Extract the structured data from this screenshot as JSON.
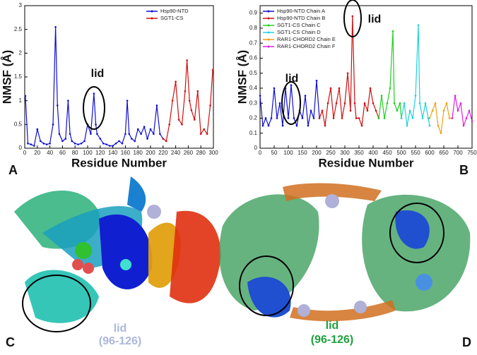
{
  "chart_data": [
    {
      "type": "line",
      "x_label": "Residue Number",
      "y_label": "NMSF (Å)",
      "annotation": "lid",
      "legend": "upper right",
      "xlim": [
        0,
        300
      ],
      "xticks": [
        0,
        20,
        40,
        60,
        80,
        100,
        120,
        140,
        160,
        180,
        200,
        220,
        240,
        260,
        280,
        300
      ],
      "ylim": [
        0,
        3
      ],
      "yticks": [
        0,
        0.5,
        1,
        1.5,
        2,
        2.5,
        3
      ],
      "series": [
        {
          "name": "Hsp90-NTD",
          "color": "#1010d0",
          "x": [
            1,
            5,
            10,
            15,
            20,
            25,
            30,
            35,
            40,
            45,
            49,
            52,
            55,
            60,
            65,
            69,
            72,
            75,
            80,
            85,
            90,
            95,
            100,
            105,
            110,
            113,
            115,
            120,
            125,
            130,
            135,
            140,
            145,
            150,
            155,
            160,
            163,
            166,
            170,
            175,
            180,
            185,
            190,
            195,
            200,
            205,
            210,
            215,
            220
          ],
          "values": [
            1.1,
            0.1,
            0.08,
            0.05,
            0.4,
            0.15,
            0.1,
            0.08,
            0.1,
            0.5,
            2.55,
            0.9,
            0.3,
            0.15,
            0.2,
            1.0,
            0.3,
            0.15,
            0.1,
            0.08,
            0.1,
            0.15,
            0.5,
            0.3,
            1.15,
            0.5,
            0.3,
            0.2,
            0.1,
            0.08,
            0.05,
            0.05,
            0.1,
            0.15,
            0.1,
            0.3,
            1.0,
            0.3,
            0.2,
            0.15,
            0.4,
            0.3,
            0.45,
            0.2,
            0.4,
            0.3,
            0.9,
            0.3,
            0.2
          ]
        },
        {
          "name": "SGT1-CS",
          "color": "#d01010",
          "x": [
            220,
            225,
            230,
            235,
            240,
            245,
            250,
            255,
            258,
            262,
            265,
            270,
            275,
            280,
            285,
            290,
            295,
            299
          ],
          "values": [
            0.2,
            0.15,
            0.5,
            1.0,
            1.4,
            0.6,
            0.5,
            1.2,
            1.85,
            1.0,
            0.8,
            0.6,
            1.2,
            0.3,
            0.4,
            0.3,
            0.9,
            1.65
          ]
        }
      ]
    },
    {
      "type": "line",
      "x_label": "Residue Number",
      "y_label": "NMSF (Å)",
      "annotation": "lid",
      "legend": "upper left",
      "xlim": [
        0,
        750
      ],
      "xticks": [
        0,
        50,
        100,
        150,
        200,
        250,
        300,
        350,
        400,
        450,
        500,
        550,
        600,
        650,
        700,
        750
      ],
      "ylim": [
        0,
        0.95
      ],
      "yticks": [
        0,
        0.1,
        0.2,
        0.3,
        0.4,
        0.5,
        0.6,
        0.7,
        0.8,
        0.9
      ],
      "series": [
        {
          "name": "Hsp90-NTD Chain A",
          "color": "#1010d0",
          "x": [
            0,
            10,
            20,
            30,
            40,
            50,
            60,
            70,
            80,
            90,
            100,
            110,
            120,
            130,
            140,
            150,
            160,
            170,
            180,
            190,
            200,
            210
          ],
          "values": [
            0.35,
            0.15,
            0.2,
            0.15,
            0.2,
            0.4,
            0.2,
            0.3,
            0.15,
            0.4,
            0.2,
            0.42,
            0.2,
            0.15,
            0.25,
            0.2,
            0.35,
            0.15,
            0.25,
            0.2,
            0.45,
            0.2
          ]
        },
        {
          "name": "Hsp90-NTD Chain B",
          "color": "#d01010",
          "x": [
            210,
            220,
            230,
            240,
            250,
            260,
            270,
            280,
            290,
            300,
            310,
            320,
            327,
            335,
            340,
            350,
            360,
            370,
            380,
            390,
            400,
            410,
            420
          ],
          "values": [
            0.2,
            0.25,
            0.15,
            0.3,
            0.4,
            0.2,
            0.3,
            0.4,
            0.2,
            0.3,
            0.5,
            0.25,
            0.88,
            0.3,
            0.2,
            0.2,
            0.15,
            0.3,
            0.25,
            0.4,
            0.3,
            0.25,
            0.2
          ]
        },
        {
          "name": "SGT1-CS Chain C",
          "color": "#20d020",
          "x": [
            420,
            430,
            440,
            450,
            460,
            470,
            475,
            485,
            495,
            500
          ],
          "values": [
            0.2,
            0.35,
            0.2,
            0.3,
            0.4,
            0.78,
            0.3,
            0.25,
            0.3,
            0.2
          ]
        },
        {
          "name": "SGT1-CS Chain D",
          "color": "#20d0e0",
          "x": [
            500,
            510,
            520,
            530,
            540,
            550,
            560,
            565,
            575,
            585,
            595,
            600
          ],
          "values": [
            0.2,
            0.3,
            0.15,
            0.25,
            0.2,
            0.35,
            0.82,
            0.3,
            0.2,
            0.3,
            0.2,
            0.15
          ]
        },
        {
          "name": "RAR1-CHORD2 Chain E",
          "color": "#f0a010",
          "x": [
            600,
            610,
            620,
            630,
            640,
            650,
            660,
            670,
            680
          ],
          "values": [
            0.2,
            0.25,
            0.3,
            0.15,
            0.1,
            0.25,
            0.3,
            0.2,
            0.2
          ]
        },
        {
          "name": "RAR1-CHORD2 Chain F",
          "color": "#e020e0",
          "x": [
            680,
            690,
            700,
            710,
            720,
            730,
            740,
            750
          ],
          "values": [
            0.2,
            0.35,
            0.25,
            0.3,
            0.15,
            0.2,
            0.25,
            0.18
          ]
        }
      ]
    }
  ],
  "panels": {
    "labels": [
      "A",
      "B",
      "C",
      "D"
    ],
    "C": {
      "annotation": "lid",
      "range": "(96-126)"
    },
    "D": {
      "annotation": "lid",
      "range": "(96-126)"
    }
  }
}
